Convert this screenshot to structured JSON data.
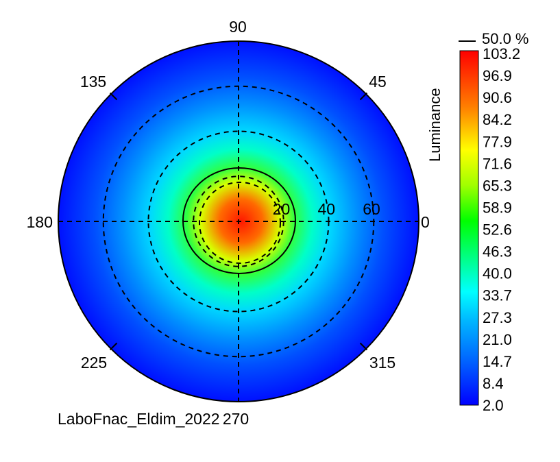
{
  "chart_data": {
    "type": "heatmap",
    "subtype": "polar-conoscopic",
    "source_label": "LaboFnac_Eldim_2022",
    "colorbar": {
      "title": "Luminance",
      "contour_legend": "50.0 %",
      "ticks": [
        "103.2",
        "96.9",
        "90.6",
        "84.2",
        "77.9",
        "71.6",
        "65.3",
        "58.9",
        "52.6",
        "46.3",
        "40.0",
        "33.7",
        "27.3",
        "21.0",
        "14.7",
        "8.4",
        "2.0"
      ],
      "range": [
        2.0,
        103.2
      ],
      "colormap": [
        "#0000ff",
        "#00a0ff",
        "#00ffff",
        "#00ff40",
        "#a0ff00",
        "#ffff00",
        "#ff8000",
        "#ff0000"
      ]
    },
    "polar": {
      "azimuth_labels": [
        "0",
        "45",
        "90",
        "135",
        "180",
        "225",
        "270",
        "315"
      ],
      "radial_labels": [
        "20",
        "40",
        "60"
      ],
      "radial_values": [
        20,
        40,
        60
      ],
      "max_angle": 80
    },
    "peak_luminance": 103.2,
    "half_luminance_contour": "50.0 %",
    "grid": true
  },
  "colors": {
    "background": "#ffffff",
    "grid": "#000000",
    "max": "#ff0000",
    "min": "#0000ff"
  }
}
